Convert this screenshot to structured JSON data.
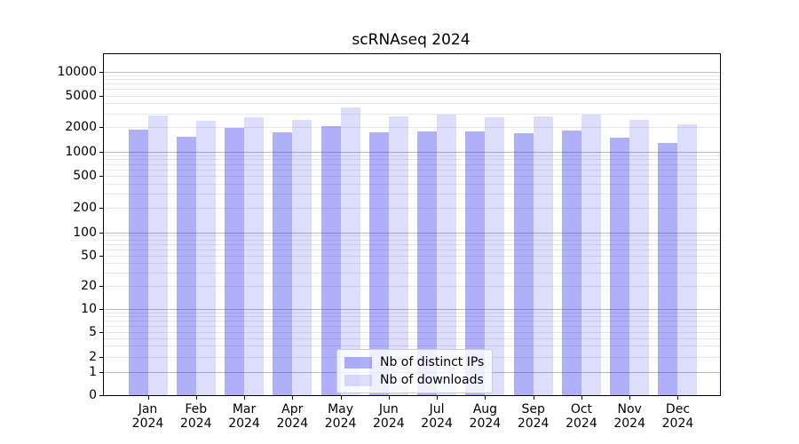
{
  "figure": {
    "title": "scRNAseq 2024"
  },
  "chart_data": {
    "type": "bar",
    "title": "scRNAseq 2024",
    "categories": [
      "Jan 2024",
      "Feb 2024",
      "Mar 2024",
      "Apr 2024",
      "May 2024",
      "Jun 2024",
      "Jul 2024",
      "Aug 2024",
      "Sep 2024",
      "Oct 2024",
      "Nov 2024",
      "Dec 2024"
    ],
    "x_tick_lines": [
      [
        "Jan",
        "2024"
      ],
      [
        "Feb",
        "2024"
      ],
      [
        "Mar",
        "2024"
      ],
      [
        "Apr",
        "2024"
      ],
      [
        "May",
        "2024"
      ],
      [
        "Jun",
        "2024"
      ],
      [
        "Jul",
        "2024"
      ],
      [
        "Aug",
        "2024"
      ],
      [
        "Sep",
        "2024"
      ],
      [
        "Oct",
        "2024"
      ],
      [
        "Nov",
        "2024"
      ],
      [
        "Dec",
        "2024"
      ]
    ],
    "series": [
      {
        "name": "Nb of distinct IPs",
        "color": "rgba(30,30,235,0.35)",
        "values": [
          1870,
          1540,
          1970,
          1750,
          2070,
          1750,
          1790,
          1780,
          1700,
          1810,
          1490,
          1280
        ]
      },
      {
        "name": "Nb of downloads",
        "color": "rgba(30,30,235,0.15)",
        "values": [
          2820,
          2420,
          2680,
          2500,
          3520,
          2770,
          2910,
          2680,
          2730,
          2890,
          2460,
          2170
        ]
      }
    ],
    "yscale": "symlog (linear 0-1, log above 1)",
    "yticks": [
      0,
      1,
      2,
      5,
      10,
      20,
      50,
      100,
      200,
      500,
      1000,
      2000,
      5000,
      10000
    ],
    "ylim": [
      0,
      16500
    ],
    "grid": "both (major darker at powers of 10, minor light)",
    "legend": {
      "position": "lower center",
      "entries": [
        "Nb of distinct IPs",
        "Nb of downloads"
      ]
    },
    "colors": {
      "bar_distinct_ips": "rgba(30,30,235,0.35)",
      "bar_downloads": "rgba(30,30,235,0.15)",
      "grid_major": "#bdbdbd",
      "grid_minor": "#e8e8e8",
      "spine": "#000000",
      "background": "#ffffff"
    }
  }
}
